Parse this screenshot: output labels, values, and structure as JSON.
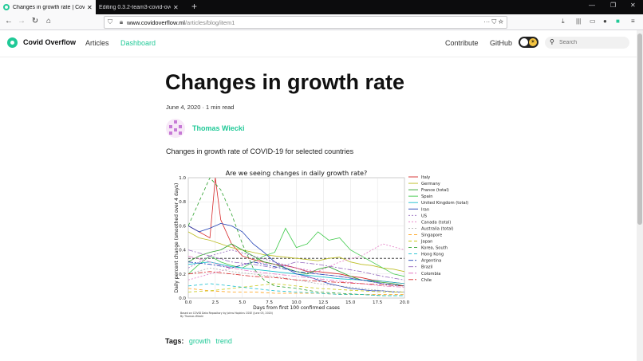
{
  "browser": {
    "tabs": [
      {
        "title": "Changes in growth rate | Covid"
      },
      {
        "title": "Editing 0.3.2-team3-covid-ove"
      }
    ],
    "url_host": "www.covidoverflow.ml",
    "url_path": "/articles/blog/item1"
  },
  "site": {
    "brand": "Covid Overflow",
    "nav": [
      "Articles",
      "Dashboard"
    ],
    "right_nav": [
      "Contribute",
      "GitHub"
    ],
    "search_placeholder": "Search"
  },
  "article": {
    "title": "Changes in growth rate",
    "meta": "June 4, 2020 · 1 min read",
    "author": "Thomas Wiecki",
    "lead": "Changes in growth rate of COVID-19 for selected countries",
    "tags_label": "Tags:",
    "tags": [
      "growth",
      "trend"
    ]
  },
  "chart_data": {
    "type": "line",
    "title": "Are we seeing changes in daily growth rate?",
    "xlabel": "Days from first 100 confirmed cases",
    "ylabel": "Daily percent change (smoothed over 4 days)",
    "xlim": [
      0,
      20
    ],
    "ylim": [
      0,
      1.0
    ],
    "xticks": [
      "0.0",
      "2.5",
      "5.0",
      "7.5",
      "10.0",
      "12.5",
      "15.0",
      "17.5",
      "20.0"
    ],
    "yticks": [
      "0.0",
      "0.2",
      "0.4",
      "0.6",
      "0.8",
      "1.0"
    ],
    "reference_line": 0.33,
    "source_note": "Based on COVID Data Repository by Johns Hopkins CSSE (June 03, 2020)",
    "byline": "By Thomas Wiecki",
    "grid": true,
    "legend_position": "right",
    "series": [
      {
        "name": "Italy",
        "color": "#d62728",
        "dash": "",
        "x": [
          0,
          1,
          2,
          2.5,
          3,
          4,
          5,
          6,
          7,
          8,
          9,
          10,
          11,
          12,
          13,
          14,
          15,
          16,
          17,
          18,
          19,
          20
        ],
        "y": [
          0.6,
          0.55,
          0.5,
          1.0,
          0.65,
          0.45,
          0.35,
          0.32,
          0.3,
          0.28,
          0.27,
          0.25,
          0.22,
          0.22,
          0.21,
          0.2,
          0.18,
          0.17,
          0.15,
          0.14,
          0.13,
          0.12
        ]
      },
      {
        "name": "Germany",
        "color": "#bcbd22",
        "dash": "",
        "x": [
          0,
          1,
          2,
          3,
          4,
          5,
          6,
          7,
          8,
          9,
          10,
          11,
          12,
          13,
          14,
          15,
          16,
          17,
          18,
          19,
          20
        ],
        "y": [
          0.55,
          0.5,
          0.48,
          0.45,
          0.42,
          0.4,
          0.38,
          0.36,
          0.35,
          0.34,
          0.33,
          0.32,
          0.31,
          0.33,
          0.34,
          0.3,
          0.28,
          0.27,
          0.25,
          0.24,
          0.22
        ]
      },
      {
        "name": "France (total)",
        "color": "#2ca02c",
        "dash": "",
        "x": [
          0,
          1,
          2,
          3,
          4,
          5,
          6,
          7,
          8,
          9,
          10,
          11,
          12,
          13,
          14,
          15,
          16,
          17,
          18,
          19,
          20
        ],
        "y": [
          0.3,
          0.35,
          0.38,
          0.4,
          0.45,
          0.4,
          0.35,
          0.3,
          0.28,
          0.25,
          0.22,
          0.2,
          0.24,
          0.26,
          0.22,
          0.18,
          0.15,
          0.14,
          0.13,
          0.12,
          0.1
        ]
      },
      {
        "name": "Spain",
        "color": "#3ec94a",
        "dash": "",
        "x": [
          0,
          1,
          2,
          3,
          4,
          5,
          6,
          7,
          8,
          9,
          10,
          11,
          12,
          13,
          14,
          15,
          16,
          17,
          18,
          19,
          20
        ],
        "y": [
          0.2,
          0.28,
          0.35,
          0.3,
          0.27,
          0.25,
          0.3,
          0.35,
          0.38,
          0.58,
          0.42,
          0.45,
          0.55,
          0.48,
          0.5,
          0.4,
          0.35,
          0.3,
          0.25,
          0.2,
          0.18
        ]
      },
      {
        "name": "United Kingdom (total)",
        "color": "#17becf",
        "dash": "",
        "x": [
          0,
          2,
          4,
          6,
          8,
          10,
          12,
          14,
          16,
          18,
          20
        ],
        "y": [
          0.28,
          0.3,
          0.26,
          0.24,
          0.22,
          0.2,
          0.18,
          0.16,
          0.15,
          0.14,
          0.12
        ]
      },
      {
        "name": "Iran",
        "color": "#1f3fb4",
        "dash": "",
        "x": [
          0,
          1,
          2,
          3,
          4,
          5,
          6,
          7,
          8,
          9,
          10,
          11,
          12,
          13,
          14,
          15,
          16,
          17,
          18,
          19,
          20
        ],
        "y": [
          0.6,
          0.55,
          0.58,
          0.62,
          0.6,
          0.55,
          0.45,
          0.38,
          0.3,
          0.25,
          0.2,
          0.18,
          0.15,
          0.12,
          0.1,
          0.08,
          0.07,
          0.06,
          0.06,
          0.05,
          0.05
        ]
      },
      {
        "name": "US",
        "color": "#9467bd",
        "dash": "2,2",
        "x": [
          0,
          2,
          4,
          6,
          8,
          10,
          12,
          14,
          16,
          18,
          20
        ],
        "y": [
          0.25,
          0.35,
          0.4,
          0.35,
          0.3,
          0.25,
          0.2,
          0.18,
          0.15,
          0.12,
          0.1
        ]
      },
      {
        "name": "Canada (total)",
        "color": "#e377c2",
        "dash": "2,2",
        "x": [
          0,
          2,
          4,
          6,
          8,
          10,
          12,
          14,
          16,
          18,
          20
        ],
        "y": [
          0.15,
          0.2,
          0.25,
          0.3,
          0.28,
          0.25,
          0.22,
          0.3,
          0.35,
          0.45,
          0.4
        ]
      },
      {
        "name": "Australia (total)",
        "color": "#b0b0b0",
        "dash": "2,2",
        "x": [
          0,
          2,
          4,
          6,
          8,
          10,
          12,
          14,
          16,
          18,
          20
        ],
        "y": [
          0.2,
          0.25,
          0.22,
          0.2,
          0.18,
          0.15,
          0.12,
          0.1,
          0.08,
          0.06,
          0.05
        ]
      },
      {
        "name": "Singapore",
        "color": "#ff9f0e",
        "dash": "4,3",
        "x": [
          0,
          2,
          4,
          6,
          8,
          10,
          12,
          14,
          16,
          18,
          20
        ],
        "y": [
          0.08,
          0.06,
          0.05,
          0.05,
          0.04,
          0.04,
          0.04,
          0.03,
          0.03,
          0.03,
          0.03
        ]
      },
      {
        "name": "Japan",
        "color": "#c8c815",
        "dash": "4,3",
        "x": [
          0,
          2,
          4,
          6,
          8,
          10,
          12,
          14,
          16,
          18,
          20
        ],
        "y": [
          0.05,
          0.06,
          0.08,
          0.1,
          0.12,
          0.1,
          0.08,
          0.07,
          0.06,
          0.05,
          0.05
        ]
      },
      {
        "name": "Korea, South",
        "color": "#2ca02c",
        "dash": "4,3",
        "x": [
          0,
          1,
          2,
          3,
          4,
          5,
          6,
          7,
          8,
          10,
          12,
          14,
          16,
          18,
          20
        ],
        "y": [
          0.6,
          0.8,
          1.0,
          0.9,
          0.7,
          0.45,
          0.25,
          0.15,
          0.1,
          0.08,
          0.05,
          0.04,
          0.03,
          0.02,
          0.02
        ]
      },
      {
        "name": "Hong Kong",
        "color": "#17becf",
        "dash": "4,3",
        "x": [
          0,
          2,
          4,
          6,
          8,
          10,
          12,
          14,
          16,
          18,
          20
        ],
        "y": [
          0.1,
          0.12,
          0.1,
          0.08,
          0.06,
          0.05,
          0.04,
          0.03,
          0.03,
          0.02,
          0.02
        ]
      },
      {
        "name": "Argentina",
        "color": "#1f3fb4",
        "dash": "6,2,2,2",
        "x": [
          0,
          2,
          4,
          6,
          8,
          10,
          12,
          14,
          16,
          18,
          20
        ],
        "y": [
          0.3,
          0.28,
          0.25,
          0.3,
          0.26,
          0.22,
          0.2,
          0.18,
          0.15,
          0.12,
          0.1
        ]
      },
      {
        "name": "Brazil",
        "color": "#9467bd",
        "dash": "6,2,2,2",
        "x": [
          0,
          2,
          4,
          6,
          8,
          10,
          12,
          14,
          16,
          18,
          20
        ],
        "y": [
          0.4,
          0.35,
          0.3,
          0.28,
          0.25,
          0.3,
          0.28,
          0.25,
          0.22,
          0.18,
          0.15
        ]
      },
      {
        "name": "Colombia",
        "color": "#e377c2",
        "dash": "6,2,2,2",
        "x": [
          0,
          2,
          4,
          6,
          8,
          10,
          12,
          14,
          16,
          18,
          20
        ],
        "y": [
          0.35,
          0.3,
          0.25,
          0.22,
          0.2,
          0.18,
          0.16,
          0.14,
          0.12,
          0.1,
          0.09
        ]
      },
      {
        "name": "Chile",
        "color": "#d62728",
        "dash": "6,2,2,2",
        "x": [
          0,
          2,
          4,
          6,
          8,
          10,
          12,
          14,
          16,
          18,
          20
        ],
        "y": [
          0.2,
          0.22,
          0.2,
          0.18,
          0.17,
          0.15,
          0.14,
          0.13,
          0.12,
          0.11,
          0.1
        ]
      }
    ]
  }
}
